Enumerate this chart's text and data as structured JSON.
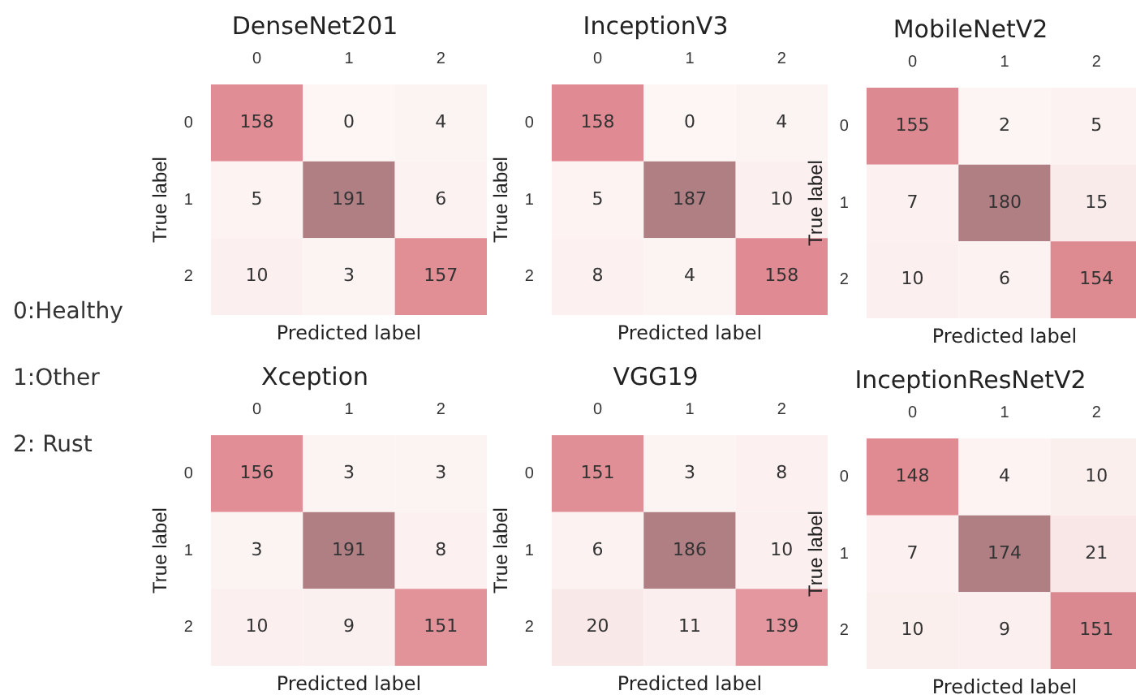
{
  "chart_data": [
    {
      "type": "heatmap",
      "title": "DenseNet201",
      "categories": [
        "0",
        "1",
        "2"
      ],
      "y_categories": [
        "0",
        "1",
        "2"
      ],
      "xlabel": "Predicted label",
      "ylabel": "True label",
      "data_labels": true,
      "cells": [
        [
          158,
          0,
          4
        ],
        [
          5,
          191,
          6
        ],
        [
          10,
          3,
          157
        ]
      ]
    },
    {
      "type": "heatmap",
      "title": "InceptionV3",
      "categories": [
        "0",
        "1",
        "2"
      ],
      "y_categories": [
        "0",
        "1",
        "2"
      ],
      "xlabel": "Predicted label",
      "ylabel": "True label",
      "data_labels": true,
      "cells": [
        [
          158,
          0,
          4
        ],
        [
          5,
          187,
          10
        ],
        [
          8,
          4,
          158
        ]
      ]
    },
    {
      "type": "heatmap",
      "title": "MobileNetV2",
      "categories": [
        "0",
        "1",
        "2"
      ],
      "y_categories": [
        "0",
        "1",
        "2"
      ],
      "xlabel": "Predicted label",
      "ylabel": "True label",
      "data_labels": true,
      "cells": [
        [
          155,
          2,
          5
        ],
        [
          7,
          180,
          15
        ],
        [
          10,
          6,
          154
        ]
      ]
    },
    {
      "type": "other",
      "annotations": [
        "0:Healthy",
        "1:Other",
        "2: Rust"
      ]
    },
    {
      "type": "heatmap",
      "title": "Xception",
      "categories": [
        "0",
        "1",
        "2"
      ],
      "y_categories": [
        "0",
        "1",
        "2"
      ],
      "xlabel": "Predicted label",
      "ylabel": "True label",
      "data_labels": true,
      "cells": [
        [
          156,
          3,
          3
        ],
        [
          3,
          191,
          8
        ],
        [
          10,
          9,
          151
        ]
      ]
    },
    {
      "type": "heatmap",
      "title": "VGG19",
      "categories": [
        "0",
        "1",
        "2"
      ],
      "y_categories": [
        "0",
        "1",
        "2"
      ],
      "xlabel": "Predicted label",
      "ylabel": "True label",
      "data_labels": true,
      "cells": [
        [
          151,
          3,
          8
        ],
        [
          6,
          186,
          10
        ],
        [
          20,
          11,
          139
        ]
      ]
    },
    {
      "type": "heatmap",
      "title": "InceptionResNetV2",
      "categories": [
        "0",
        "1",
        "2"
      ],
      "y_categories": [
        "0",
        "1",
        "2"
      ],
      "xlabel": "Predicted label",
      "ylabel": "True label",
      "data_labels": true,
      "cells": [
        [
          148,
          4,
          10
        ],
        [
          7,
          174,
          21
        ],
        [
          10,
          9,
          151
        ]
      ]
    }
  ]
}
